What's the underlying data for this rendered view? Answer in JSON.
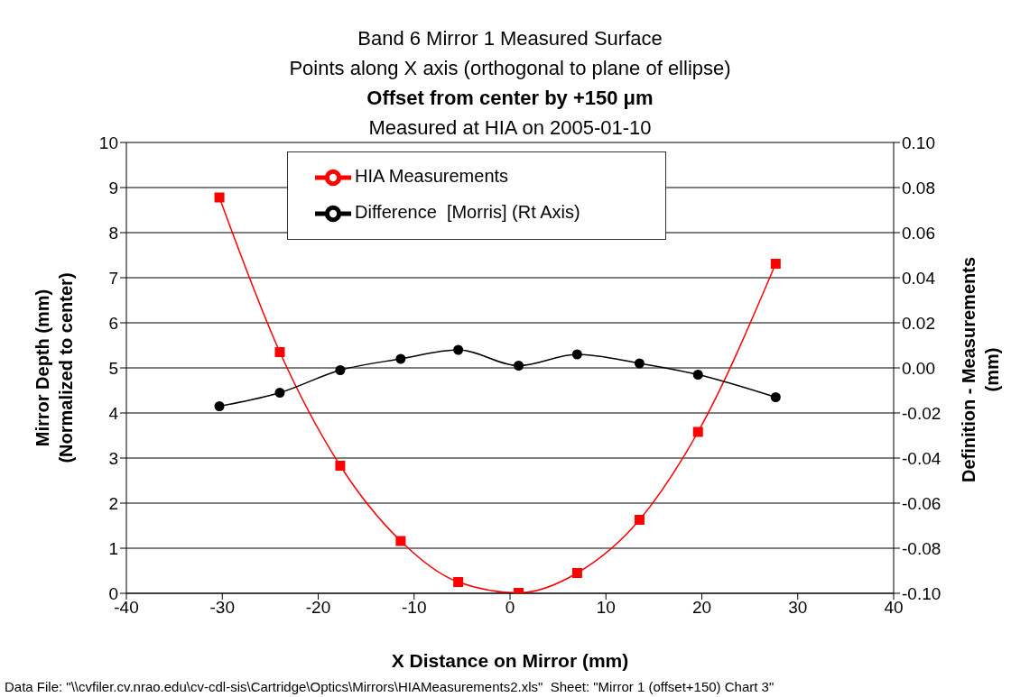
{
  "chart_data": {
    "type": "line",
    "title": "Band 6 Mirror 1 Measured Surface",
    "subtitle": "Points along X axis (orthogonal to plane of ellipse)\nOffset from center by +150 μm\nMeasured at HIA on 2005-01-10",
    "xlabel": "X Distance on Mirror (mm)",
    "ylabel": "Mirror Depth (mm)\n(Normalized to center)",
    "y2label": "Definition - Measurements\n(mm)",
    "annotations": [
      "Data File: \"\\\\cvfiler.cv.nrao.edu\\cv-cdl-sis\\Cartridge\\Optics\\Mirrors\\HIAMeasurements2.xls\"  Sheet: \"Mirror 1 (offset+150) Chart 3\""
    ],
    "series": [
      {
        "name": "HIA Measurements",
        "color": "#ff0000",
        "marker": "square",
        "x": [
          -30.3,
          -24.0,
          -17.7,
          -11.4,
          -5.4,
          0.9,
          7.0,
          13.5,
          19.6,
          27.7
        ],
        "values": [
          8.78,
          5.35,
          2.83,
          1.16,
          0.25,
          0.01,
          0.45,
          1.63,
          3.58,
          7.31
        ]
      },
      {
        "name": "Difference  [Morris] (Rt Axis)",
        "color": "#000000",
        "marker": "circle",
        "axis": "y2",
        "x": [
          -30.3,
          -24.0,
          -17.7,
          -11.4,
          -5.4,
          0.9,
          7.0,
          13.5,
          19.6,
          27.7
        ],
        "values": [
          -0.017,
          -0.011,
          -0.001,
          0.004,
          0.008,
          0.001,
          0.006,
          0.002,
          -0.003,
          -0.013
        ]
      }
    ],
    "xlim": [
      -40,
      40
    ],
    "xticks": [
      -40,
      -30,
      -20,
      -10,
      0,
      10,
      20,
      30,
      40
    ],
    "ylim": [
      0,
      10
    ],
    "yticks": [
      0,
      1,
      2,
      3,
      4,
      5,
      6,
      7,
      8,
      9,
      10
    ],
    "y2lim": [
      -0.1,
      0.1
    ],
    "y2ticks": [
      {
        "value": -0.1,
        "label": "-0.10"
      },
      {
        "value": -0.08,
        "label": "-0.08"
      },
      {
        "value": -0.06,
        "label": "-0.06"
      },
      {
        "value": -0.04,
        "label": "-0.04"
      },
      {
        "value": -0.02,
        "label": "-0.02"
      },
      {
        "value": 0,
        "label": "0.00"
      },
      {
        "value": 0.02,
        "label": "0.02"
      },
      {
        "value": 0.04,
        "label": "0.04"
      },
      {
        "value": 0.06,
        "label": "0.06"
      },
      {
        "value": 0.08,
        "label": "0.08"
      },
      {
        "value": 0.1,
        "label": "0.10"
      }
    ],
    "grid": "y",
    "legend": "top",
    "line_style": "solid"
  }
}
